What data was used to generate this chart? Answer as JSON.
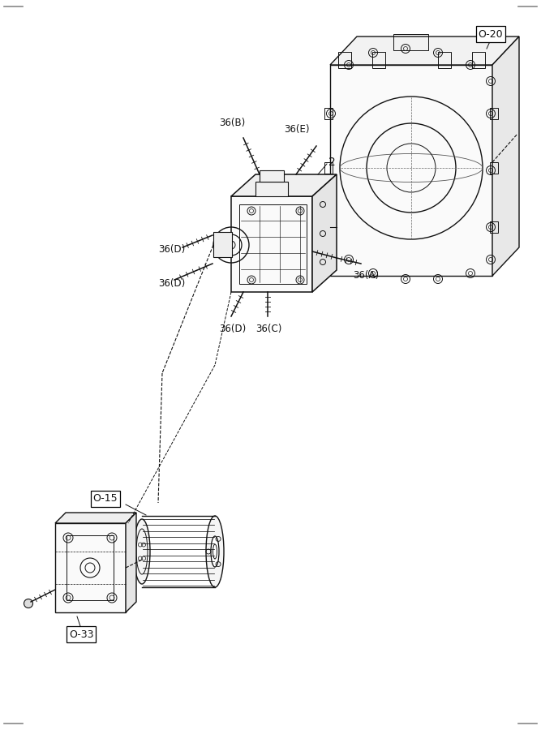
{
  "bg_color": "#ffffff",
  "line_color": "#111111",
  "label_color": "#000000",
  "figsize": [
    6.67,
    9.0
  ],
  "dpi": 100,
  "labels": {
    "O_20": "O-20",
    "O_15": "O-15",
    "O_33": "O-33",
    "part2": "2",
    "36E": "36(E)",
    "36B": "36(B)",
    "36D_1": "36(D)",
    "36D_2": "36(D)",
    "36D_3": "36(D)",
    "36C": "36(C)",
    "36A": "36(A)"
  },
  "border_color": "#888888"
}
